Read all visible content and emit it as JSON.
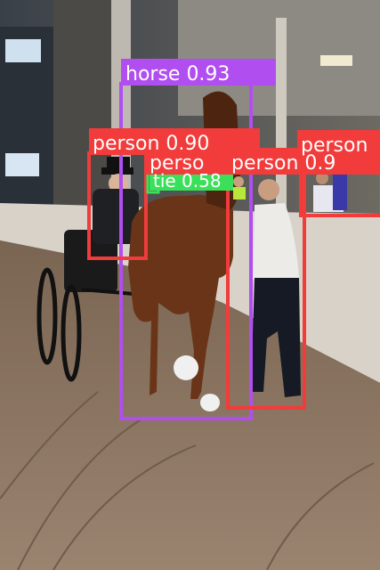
{
  "scene": {
    "kind": "object-detection-overlay",
    "subjects": [
      "horse",
      "carriage",
      "driver",
      "handler",
      "spectators"
    ],
    "colors": {
      "horse_box": "#b14ef0",
      "person_box": "#f23b3b",
      "tie_box": "#3be05a",
      "arena_floor": "#8b7560",
      "wall": "#d8d2c8"
    }
  },
  "detections": [
    {
      "id": "horse",
      "label": "horse 0.93",
      "class": "horse",
      "score": 0.93
    },
    {
      "id": "person-driver",
      "label": "person 0.90",
      "class": "person",
      "score": 0.9
    },
    {
      "id": "person-handler",
      "label": "person 0.9",
      "class": "person",
      "score": 0.9
    },
    {
      "id": "person-right",
      "label": "person",
      "class": "person"
    },
    {
      "id": "person-mid",
      "label": "perso",
      "class": "person"
    },
    {
      "id": "tie",
      "label": "tie 0.58",
      "class": "tie",
      "score": 0.58
    }
  ]
}
